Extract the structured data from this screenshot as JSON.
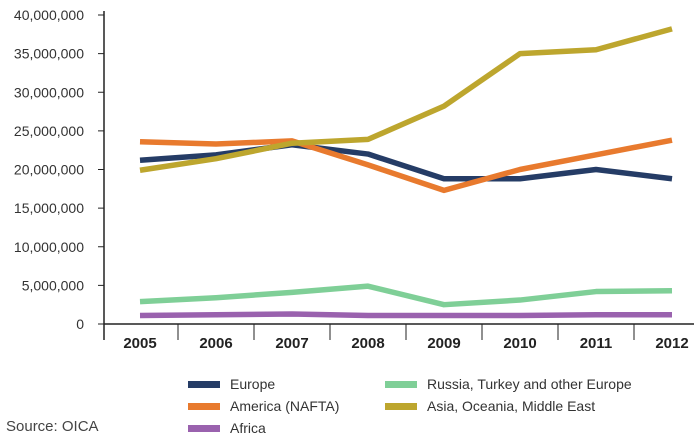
{
  "chart_data": {
    "type": "line",
    "categories": [
      "2005",
      "2006",
      "2007",
      "2008",
      "2009",
      "2010",
      "2011",
      "2012"
    ],
    "y_ticks": [
      "40,000,000",
      "35,000,000",
      "30,000,000",
      "25,000,000",
      "20,000,000",
      "15,000,000",
      "10,000,000",
      "5,000,000",
      "0"
    ],
    "ylim": [
      0,
      40000000
    ],
    "grid": false,
    "legend_position": "bottom",
    "series": [
      {
        "name": "Europe",
        "color": "#253c66",
        "values": [
          21200000,
          21900000,
          23200000,
          22000000,
          18800000,
          18800000,
          20000000,
          18800000
        ]
      },
      {
        "name": "America (NAFTA)",
        "color": "#e87a2e",
        "values": [
          23600000,
          23300000,
          23700000,
          20600000,
          17300000,
          20000000,
          21900000,
          23800000
        ]
      },
      {
        "name": "Africa",
        "color": "#9a62ae",
        "values": [
          1100000,
          1200000,
          1300000,
          1100000,
          1100000,
          1100000,
          1200000,
          1200000
        ]
      },
      {
        "name": "Russia, Turkey and other Europe",
        "color": "#7fcf97",
        "values": [
          2900000,
          3400000,
          4100000,
          4900000,
          2500000,
          3100000,
          4200000,
          4300000
        ]
      },
      {
        "name": "Asia, Oceania, Middle East",
        "color": "#bda62e",
        "values": [
          19900000,
          21400000,
          23400000,
          23900000,
          28200000,
          35000000,
          35500000,
          38200000
        ]
      }
    ],
    "source": "Source: OICA"
  }
}
